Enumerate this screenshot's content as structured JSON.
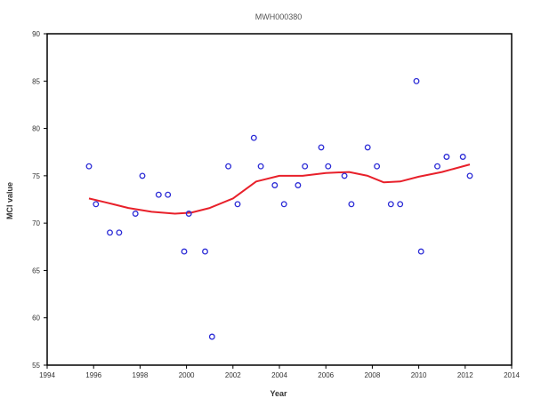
{
  "chart_data": {
    "type": "scatter",
    "title": "MWH000380",
    "xlabel": "Year",
    "ylabel": "MCI value",
    "xlim": [
      1994,
      2014
    ],
    "ylim": [
      55,
      90
    ],
    "xticks": [
      1994,
      1996,
      1998,
      2000,
      2002,
      2004,
      2006,
      2008,
      2010,
      2012,
      2014
    ],
    "yticks": [
      55,
      60,
      65,
      70,
      75,
      80,
      85,
      90
    ],
    "grid": false,
    "legend": "none",
    "colors": {
      "points": "#2b2bd6",
      "trend": "#e8202a",
      "axis": "#000000"
    },
    "series": [
      {
        "type": "scatter",
        "points": [
          [
            1995.8,
            76
          ],
          [
            1996.1,
            72
          ],
          [
            1996.7,
            69
          ],
          [
            1997.1,
            69
          ],
          [
            1997.8,
            71
          ],
          [
            1998.1,
            75
          ],
          [
            1998.8,
            73
          ],
          [
            1999.2,
            73
          ],
          [
            1999.9,
            67
          ],
          [
            2000.1,
            71
          ],
          [
            2000.8,
            67
          ],
          [
            2001.1,
            58
          ],
          [
            2001.8,
            76
          ],
          [
            2002.2,
            72
          ],
          [
            2002.9,
            79
          ],
          [
            2003.2,
            76
          ],
          [
            2003.8,
            74
          ],
          [
            2004.2,
            72
          ],
          [
            2004.8,
            74
          ],
          [
            2005.1,
            76
          ],
          [
            2005.8,
            78
          ],
          [
            2006.1,
            76
          ],
          [
            2006.8,
            75
          ],
          [
            2007.1,
            72
          ],
          [
            2007.8,
            78
          ],
          [
            2008.2,
            76
          ],
          [
            2008.8,
            72
          ],
          [
            2009.2,
            72
          ],
          [
            2009.9,
            85
          ],
          [
            2010.1,
            67
          ],
          [
            2010.8,
            76
          ],
          [
            2011.2,
            77
          ],
          [
            2011.9,
            77
          ],
          [
            2012.2,
            75
          ]
        ]
      },
      {
        "type": "line",
        "points": [
          [
            1995.8,
            72.6
          ],
          [
            1996.5,
            72.2
          ],
          [
            1997.5,
            71.6
          ],
          [
            1998.5,
            71.2
          ],
          [
            1999.5,
            71.0
          ],
          [
            2000.2,
            71.1
          ],
          [
            2001.0,
            71.6
          ],
          [
            2002.0,
            72.6
          ],
          [
            2003.0,
            74.4
          ],
          [
            2004.0,
            75.0
          ],
          [
            2005.0,
            75.0
          ],
          [
            2006.0,
            75.3
          ],
          [
            2007.0,
            75.4
          ],
          [
            2007.8,
            75.0
          ],
          [
            2008.5,
            74.3
          ],
          [
            2009.2,
            74.4
          ],
          [
            2010.0,
            74.9
          ],
          [
            2011.0,
            75.4
          ],
          [
            2012.2,
            76.2
          ]
        ]
      }
    ]
  }
}
